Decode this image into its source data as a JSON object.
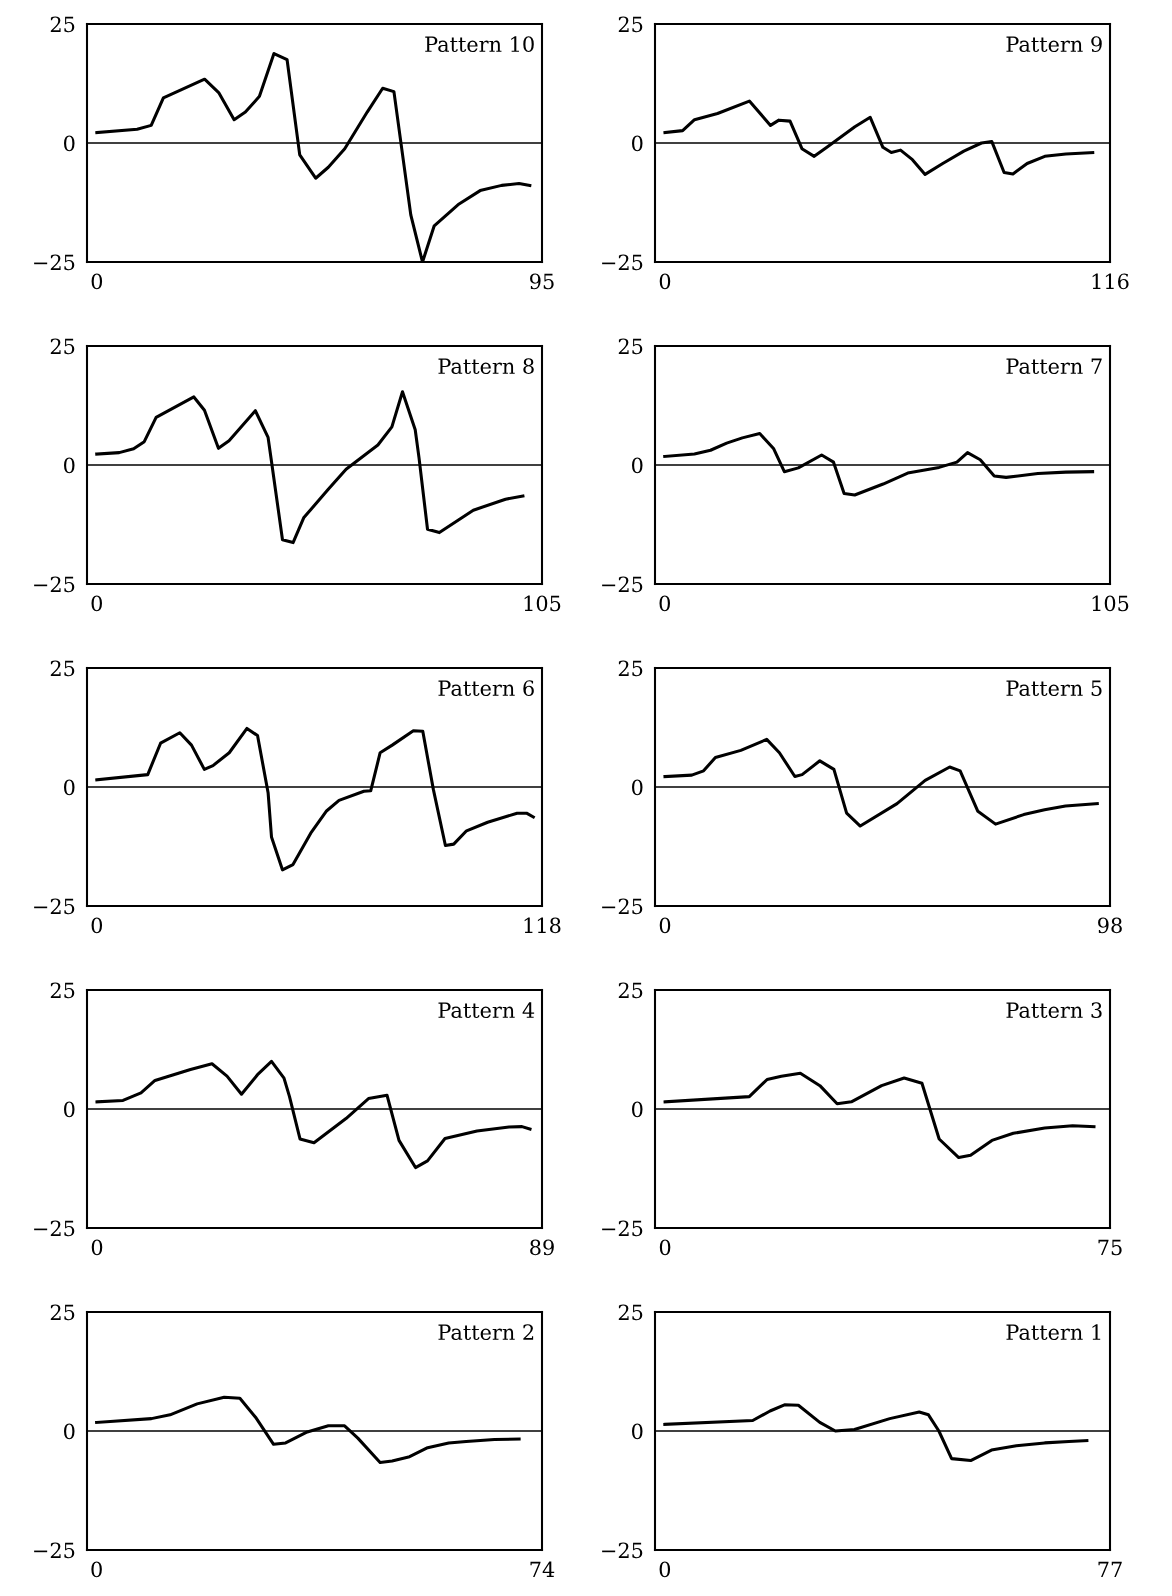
{
  "chart_data": [
    {
      "type": "line",
      "title": "Pattern 10",
      "color": "#000000",
      "xlim": [
        -2.1,
        95
      ],
      "xticks": [
        0,
        95
      ],
      "ylim": [
        -25,
        25
      ],
      "yticks": [
        -25,
        0,
        25
      ],
      "ref_lines": [
        {
          "axis": "y",
          "value": 0,
          "color": "#000000"
        }
      ],
      "x": [
        0,
        8.6,
        11.6,
        14.2,
        23,
        26,
        29.3,
        31.7,
        34.7,
        37.8,
        40.6,
        43.3,
        46.7,
        49.4,
        52.9,
        57.7,
        61,
        63.4,
        67,
        69.5,
        72,
        77.3,
        81.8,
        86.4,
        90.1,
        92.4
      ],
      "values": [
        2.2,
        2.9,
        3.7,
        9.5,
        13.4,
        10.6,
        4.9,
        6.5,
        9.8,
        18.8,
        17.5,
        -2.5,
        -7.4,
        -5.1,
        -1.2,
        6.5,
        11.5,
        10.8,
        -15.1,
        -25,
        -17.4,
        -12.8,
        -10,
        -8.9,
        -8.5,
        -8.9
      ]
    },
    {
      "type": "line",
      "title": "Pattern 9",
      "color": "#000000",
      "xlim": [
        -2.6,
        116
      ],
      "xticks": [
        0,
        116
      ],
      "ylim": [
        -25,
        25
      ],
      "yticks": [
        -25,
        0,
        25
      ],
      "ref_lines": [
        {
          "axis": "y",
          "value": 0,
          "color": "#000000"
        }
      ],
      "x": [
        0,
        4.6,
        7.7,
        13.7,
        22,
        27.5,
        29.7,
        32.6,
        35.7,
        38.9,
        42.2,
        49.5,
        53.5,
        56.8,
        59,
        61.4,
        64.5,
        67.8,
        72.4,
        77.9,
        82.5,
        85.2,
        88.4,
        90.7,
        94.4,
        99,
        104.5,
        111.5
      ],
      "values": [
        2.2,
        2.6,
        4.9,
        6.2,
        8.8,
        3.7,
        4.8,
        4.6,
        -1.2,
        -2.8,
        -0.9,
        3.4,
        5.4,
        -0.9,
        -2,
        -1.5,
        -3.5,
        -6.6,
        -4.3,
        -1.7,
        0,
        0.3,
        -6.2,
        -6.5,
        -4.3,
        -2.8,
        -2.3,
        -2
      ]
    },
    {
      "type": "line",
      "title": "Pattern 8",
      "color": "#000000",
      "xlim": [
        -2.3,
        105
      ],
      "xticks": [
        0,
        105
      ],
      "ylim": [
        -25,
        25
      ],
      "yticks": [
        -25,
        0,
        25
      ],
      "ref_lines": [
        {
          "axis": "y",
          "value": 0,
          "color": "#000000"
        }
      ],
      "x": [
        0,
        5.3,
        8.7,
        11.2,
        14,
        22.9,
        25.4,
        28.7,
        31.2,
        37.4,
        40.4,
        41.2,
        43.8,
        46.3,
        48.8,
        54.6,
        58.8,
        66.3,
        69.6,
        72.1,
        75.1,
        76,
        78,
        80.8,
        88.8,
        96.4,
        100.5
      ],
      "values": [
        2.3,
        2.6,
        3.4,
        4.9,
        10,
        14.3,
        11.5,
        3.5,
        5.1,
        11.4,
        5.8,
        0.8,
        -15.7,
        -16.3,
        -11.1,
        -5.1,
        -0.9,
        4.2,
        8,
        15.4,
        7.4,
        1.5,
        -13.5,
        -14.2,
        -9.5,
        -7.2,
        -6.5
      ]
    },
    {
      "type": "line",
      "title": "Pattern 7",
      "color": "#000000",
      "xlim": [
        -2.3,
        105
      ],
      "xticks": [
        0,
        105
      ],
      "ylim": [
        -25,
        25
      ],
      "yticks": [
        -25,
        0,
        25
      ],
      "ref_lines": [
        {
          "axis": "y",
          "value": 0,
          "color": "#000000"
        }
      ],
      "x": [
        0,
        7,
        10.8,
        14.6,
        18.3,
        22.4,
        25.7,
        28.2,
        31.5,
        37,
        39.8,
        42.3,
        44.8,
        51.5,
        57.3,
        64.7,
        68.9,
        71.4,
        74.4,
        77.7,
        80.5,
        88,
        94.6,
        100.9
      ],
      "values": [
        1.8,
        2.3,
        3.1,
        4.6,
        5.7,
        6.6,
        3.4,
        -1.4,
        -0.6,
        2.1,
        0.6,
        -6,
        -6.3,
        -4,
        -1.7,
        -0.5,
        0.6,
        2.6,
        1.1,
        -2.3,
        -2.6,
        -1.8,
        -1.5,
        -1.4
      ]
    },
    {
      "type": "line",
      "title": "Pattern 6",
      "color": "#000000",
      "xlim": [
        -2.6,
        118
      ],
      "xticks": [
        0,
        118
      ],
      "ylim": [
        -25,
        25
      ],
      "yticks": [
        -25,
        0,
        25
      ],
      "ref_lines": [
        {
          "axis": "y",
          "value": 0,
          "color": "#000000"
        }
      ],
      "x": [
        0,
        13.5,
        16.9,
        22,
        25.1,
        28.5,
        30.8,
        35.1,
        39.8,
        42.6,
        45.4,
        46.3,
        49.2,
        52,
        56.7,
        60.8,
        64.2,
        70.8,
        72.6,
        75.1,
        78.3,
        83.9,
        86.4,
        89.2,
        92.4,
        94.6,
        98,
        103.6,
        111.4,
        113.9,
        115.7
      ],
      "values": [
        1.5,
        2.6,
        9.2,
        11.4,
        8.8,
        3.7,
        4.5,
        7.2,
        12.3,
        10.8,
        -1.2,
        -10.5,
        -17.4,
        -16.3,
        -9.7,
        -5.1,
        -2.8,
        -0.9,
        -0.8,
        7.2,
        8.8,
        11.8,
        11.7,
        -0.5,
        -12.3,
        -12,
        -9.2,
        -7.4,
        -5.5,
        -5.5,
        -6.3
      ]
    },
    {
      "type": "line",
      "title": "Pattern 5",
      "color": "#000000",
      "xlim": [
        -2.2,
        98
      ],
      "xticks": [
        0,
        98
      ],
      "ylim": [
        -25,
        25
      ],
      "yticks": [
        -25,
        0,
        25
      ],
      "ref_lines": [
        {
          "axis": "y",
          "value": 0,
          "color": "#000000"
        }
      ],
      "x": [
        0,
        5.9,
        8.5,
        11.1,
        16.7,
        22.4,
        25.2,
        28.6,
        30.2,
        34.1,
        37.2,
        40,
        43,
        51.1,
        54.9,
        57.3,
        62.7,
        65,
        68.9,
        72.8,
        79,
        83.6,
        88.2,
        95.2
      ],
      "values": [
        2.2,
        2.5,
        3.4,
        6.2,
        7.7,
        10,
        7.2,
        2.2,
        2.6,
        5.5,
        3.7,
        -5.5,
        -8.2,
        -3.5,
        -0.5,
        1.4,
        4.2,
        3.4,
        -5.1,
        -7.8,
        -5.8,
        -4.8,
        -4,
        -3.5
      ]
    },
    {
      "type": "line",
      "title": "Pattern 4",
      "color": "#000000",
      "xlim": [
        -2,
        89
      ],
      "xticks": [
        0,
        89
      ],
      "ylim": [
        -25,
        25
      ],
      "yticks": [
        -25,
        0,
        25
      ],
      "ref_lines": [
        {
          "axis": "y",
          "value": 0,
          "color": "#000000"
        }
      ],
      "x": [
        0,
        5.2,
        8.8,
        11.6,
        18.7,
        23,
        26,
        28.9,
        32.1,
        34.9,
        37.4,
        38.5,
        40.6,
        43.4,
        49.8,
        54.3,
        58,
        60.4,
        63.7,
        66.1,
        69.6,
        76,
        82.4,
        85,
        86.6
      ],
      "values": [
        1.5,
        1.8,
        3.4,
        6,
        8.3,
        9.5,
        6.9,
        3.1,
        7.2,
        10,
        6.5,
        2.6,
        -6.3,
        -7.1,
        -2,
        2.2,
        2.9,
        -6.6,
        -12.3,
        -10.9,
        -6.2,
        -4.6,
        -3.8,
        -3.7,
        -4.2
      ]
    },
    {
      "type": "line",
      "title": "Pattern 3",
      "color": "#000000",
      "xlim": [
        -1.7,
        75
      ],
      "xticks": [
        0,
        75
      ],
      "ylim": [
        -25,
        25
      ],
      "yticks": [
        -25,
        0,
        25
      ],
      "ref_lines": [
        {
          "axis": "y",
          "value": 0,
          "color": "#000000"
        }
      ],
      "x": [
        0,
        14.2,
        17.2,
        19.6,
        22.8,
        26.1,
        29,
        31.4,
        36.5,
        40.3,
        43.3,
        46.2,
        49.5,
        51.5,
        55.1,
        58.7,
        64,
        68.7,
        72.3
      ],
      "values": [
        1.5,
        2.6,
        6.2,
        6.9,
        7.5,
        4.9,
        1.1,
        1.5,
        4.9,
        6.5,
        5.4,
        -6.3,
        -10.2,
        -9.7,
        -6.6,
        -5.1,
        -4,
        -3.5,
        -3.7
      ]
    },
    {
      "type": "line",
      "title": "Pattern 2",
      "color": "#000000",
      "xlim": [
        -1.6,
        74
      ],
      "xticks": [
        0,
        74
      ],
      "ylim": [
        -25,
        25
      ],
      "yticks": [
        -25,
        0,
        25
      ],
      "ref_lines": [
        {
          "axis": "y",
          "value": 0,
          "color": "#000000"
        }
      ],
      "x": [
        0,
        9.1,
        12.2,
        16.7,
        21.2,
        23.8,
        26.4,
        29.4,
        31.4,
        35,
        38.5,
        41.2,
        43.4,
        47.1,
        49.1,
        52,
        55,
        58.5,
        61.4,
        66.1,
        70.2
      ],
      "values": [
        1.8,
        2.6,
        3.4,
        5.7,
        7.1,
        6.9,
        2.9,
        -2.8,
        -2.5,
        -0.2,
        1.1,
        1.1,
        -1.5,
        -6.6,
        -6.3,
        -5.4,
        -3.5,
        -2.5,
        -2.2,
        -1.8,
        -1.7
      ]
    },
    {
      "type": "line",
      "title": "Pattern 1",
      "color": "#000000",
      "xlim": [
        -1.7,
        77
      ],
      "xticks": [
        0,
        77
      ],
      "ylim": [
        -25,
        25
      ],
      "yticks": [
        -25,
        0,
        25
      ],
      "ref_lines": [
        {
          "axis": "y",
          "value": 0,
          "color": "#000000"
        }
      ],
      "x": [
        0,
        15.2,
        18.2,
        20.7,
        23.1,
        26.8,
        29.5,
        32.8,
        38.9,
        44,
        45.6,
        47.4,
        49.6,
        52.9,
        56.5,
        60.8,
        65.7,
        69.9,
        73
      ],
      "values": [
        1.4,
        2.2,
        4.2,
        5.5,
        5.4,
        1.8,
        0,
        0.3,
        2.6,
        4,
        3.4,
        0,
        -5.8,
        -6.2,
        -4,
        -3.1,
        -2.5,
        -2.2,
        -2
      ]
    }
  ]
}
